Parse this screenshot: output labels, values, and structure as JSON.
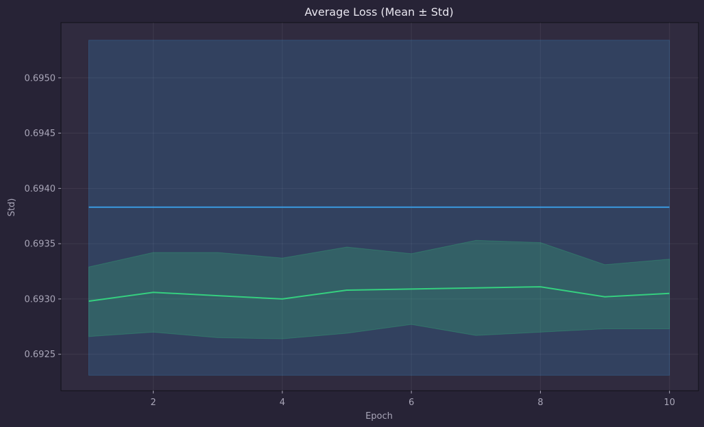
{
  "chart_data": {
    "type": "line",
    "title": "Average Loss (Mean ± Std)",
    "xlabel": "Epoch",
    "ylabel": "Std)",
    "x": [
      1,
      2,
      3,
      4,
      5,
      6,
      7,
      8,
      9,
      10
    ],
    "xlim": [
      0.57,
      10.45
    ],
    "ylim": [
      0.69217,
      0.6955
    ],
    "xticks": [
      2,
      4,
      6,
      8,
      10
    ],
    "xtick_labels": [
      "2",
      "4",
      "6",
      "8",
      "10"
    ],
    "yticks": [
      0.6925,
      0.693,
      0.6935,
      0.694,
      0.6945,
      0.695
    ],
    "ytick_labels": [
      "0.6925",
      "0.6930",
      "0.6935",
      "0.6940",
      "0.6945",
      "0.6950"
    ],
    "grid": true,
    "series": [
      {
        "color": "#3b9ae1",
        "values": [
          0.69383,
          0.69383,
          0.69383,
          0.69383,
          0.69383,
          0.69383,
          0.69383,
          0.69383,
          0.69383,
          0.69383
        ],
        "upper": [
          0.69534,
          0.69534,
          0.69534,
          0.69534,
          0.69534,
          0.69534,
          0.69534,
          0.69534,
          0.69534,
          0.69534
        ],
        "lower": [
          0.69231,
          0.69231,
          0.69231,
          0.69231,
          0.69231,
          0.69231,
          0.69231,
          0.69231,
          0.69231,
          0.69231
        ]
      },
      {
        "color": "#35d07f",
        "values": [
          0.69298,
          0.69306,
          0.69303,
          0.693,
          0.69308,
          0.69309,
          0.6931,
          0.69311,
          0.69302,
          0.69305
        ],
        "upper": [
          0.69329,
          0.69342,
          0.69342,
          0.69337,
          0.69347,
          0.69341,
          0.69353,
          0.69351,
          0.69331,
          0.69336
        ],
        "lower": [
          0.69266,
          0.6927,
          0.69265,
          0.69264,
          0.69269,
          0.69277,
          0.69267,
          0.6927,
          0.69273,
          0.69273
        ]
      }
    ]
  }
}
